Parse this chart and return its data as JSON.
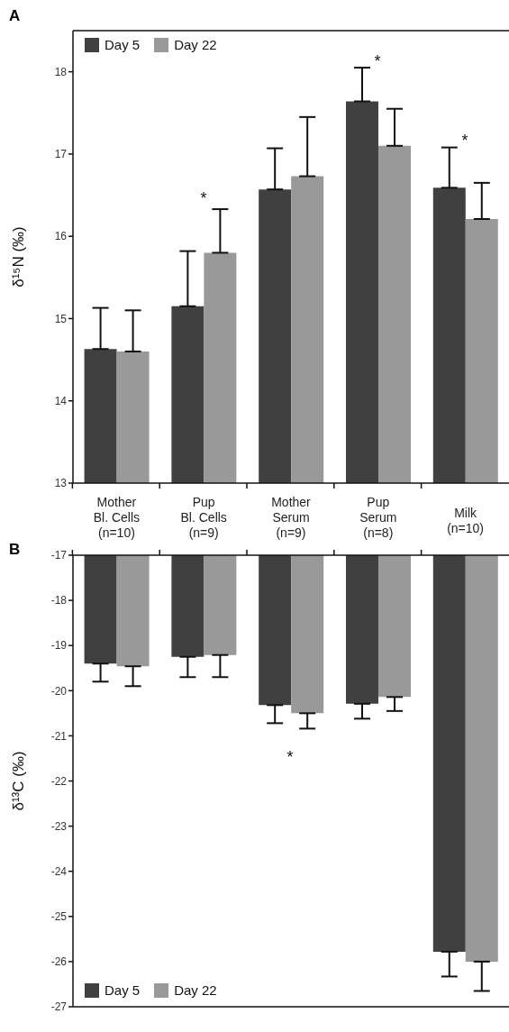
{
  "chart_data": [
    {
      "type": "bar",
      "title": "A",
      "ylabel": "δ¹⁵N (‰)",
      "categories": [
        "Mother\nBl. Cells\n(n=10)",
        "Pup\nBl. Cells\n(n=9)",
        "Mother\nSerum\n(n=9)",
        "Pup\nSerum\n(n=8)",
        "Milk\n(n=10)"
      ],
      "series": [
        {
          "name": "Day 5",
          "color": "#404040",
          "values": [
            14.63,
            15.15,
            16.57,
            17.64,
            16.59
          ],
          "errors": [
            [
              14.63,
              15.13
            ],
            [
              15.15,
              15.82
            ],
            [
              16.57,
              17.07
            ],
            [
              17.64,
              18.05
            ],
            [
              16.59,
              17.08
            ]
          ]
        },
        {
          "name": "Day 22",
          "color": "#999999",
          "values": [
            14.6,
            15.8,
            16.73,
            17.1,
            16.21
          ],
          "errors": [
            [
              14.6,
              15.1
            ],
            [
              15.8,
              16.33
            ],
            [
              16.73,
              17.45
            ],
            [
              17.1,
              17.55
            ],
            [
              16.21,
              16.65
            ]
          ]
        }
      ],
      "ylim": [
        13,
        18.5
      ],
      "yticks": [
        13,
        14,
        15,
        16,
        17,
        18
      ],
      "legend": "top left",
      "annotations": [
        "*",
        "*",
        "*"
      ]
    },
    {
      "type": "bar",
      "title": "B",
      "ylabel": "δ¹³C (‰)",
      "categories": [
        null,
        null,
        null,
        null,
        null
      ],
      "series": [
        {
          "name": "Day 5",
          "color": "#404040",
          "values": [
            -19.4,
            -19.25,
            -20.32,
            -20.29,
            -25.78
          ],
          "errors": [
            [
              -19.8,
              -19.4
            ],
            [
              -19.7,
              -19.25
            ],
            [
              -20.72,
              -20.32
            ],
            [
              -20.62,
              -20.29
            ],
            [
              -26.33,
              -25.78
            ]
          ]
        },
        {
          "name": "Day 22",
          "color": "#999999",
          "values": [
            -19.46,
            -19.21,
            -20.5,
            -20.14,
            -26.0
          ],
          "errors": [
            [
              -19.9,
              -19.46
            ],
            [
              -19.7,
              -19.21
            ],
            [
              -20.84,
              -20.5
            ],
            [
              -20.45,
              -20.14
            ],
            [
              -26.65,
              -26.0
            ]
          ]
        }
      ],
      "ylim": [
        -27,
        -17
      ],
      "yticks": [
        -27,
        -26,
        -25,
        -24,
        -23,
        -22,
        -21,
        -20,
        -19,
        -18,
        -17
      ],
      "legend": "bottom left",
      "tick_labels": "y",
      "annotations": [
        "*"
      ]
    }
  ]
}
